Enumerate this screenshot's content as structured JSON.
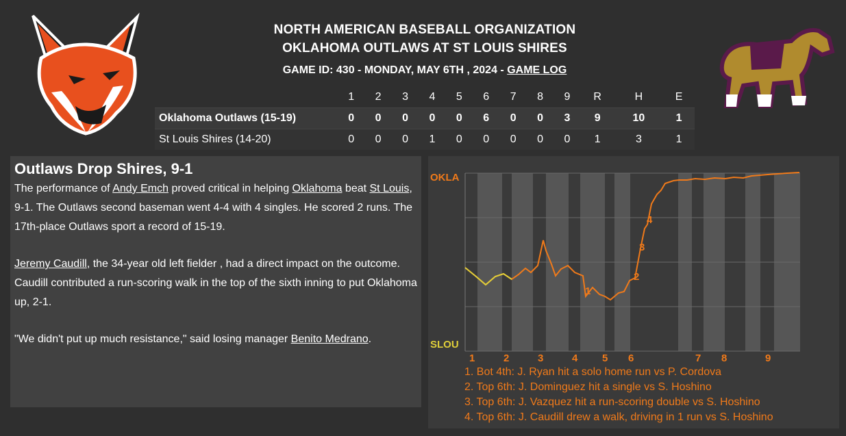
{
  "header": {
    "league": "NORTH AMERICAN BASEBALL ORGANIZATION",
    "matchup": "OKLAHOMA OUTLAWS AT ST LOUIS SHIRES",
    "game_info": "GAME ID: 430 - MONDAY, MAY 6TH , 2024 - ",
    "game_log_link": "GAME LOG"
  },
  "logos": {
    "away": "fox-logo",
    "home": "horse-logo"
  },
  "linescore": {
    "headers": [
      "1",
      "2",
      "3",
      "4",
      "5",
      "6",
      "7",
      "8",
      "9",
      "R",
      "H",
      "E"
    ],
    "rows": [
      {
        "team": "Oklahoma Outlaws (15-19)",
        "innings": [
          "0",
          "0",
          "0",
          "0",
          "0",
          "6",
          "0",
          "0",
          "3"
        ],
        "r": "9",
        "h": "10",
        "e": "1"
      },
      {
        "team": "St Louis Shires (14-20)",
        "innings": [
          "0",
          "0",
          "0",
          "1",
          "0",
          "0",
          "0",
          "0",
          "0"
        ],
        "r": "1",
        "h": "3",
        "e": "1"
      }
    ]
  },
  "story": {
    "headline": "Outlaws Drop Shires, 9-1",
    "p1": {
      "t1": "The performance of ",
      "l1": "Andy Emch",
      "t2": " proved critical in helping ",
      "l2": "Oklahoma",
      "t3": " beat ",
      "l3": "St Louis",
      "t4": ", 9-1. The Outlaws second baseman went 4-4 with 4 singles. He scored 2 runs. The 17th-place Outlaws sport a record of 15-19."
    },
    "p2": {
      "l1": "Jeremy Caudill",
      "t1": ", the 34-year old left fielder , had a direct impact on the outcome. Caudill contributed a run-scoring walk in the top of the sixth inning to put Oklahoma up, 2-1."
    },
    "p3": {
      "t1": "\"We didn't put up much resistance,\" said losing manager ",
      "l1": "Benito Medrano",
      "t2": "."
    }
  },
  "win_prob": {
    "top_label": "OKLA",
    "bottom_label": "SLOU",
    "inning_labels": [
      "1",
      "2",
      "3",
      "4",
      "5",
      "6",
      "7",
      "8",
      "9"
    ],
    "colors": {
      "okla": "#f07a1a",
      "slou": "#e0cf3a"
    },
    "markers": [
      "1",
      "2",
      "3",
      "4"
    ],
    "events": [
      "1. Bot 4th: J. Ryan hit a solo home run vs P. Cordova",
      "2. Top 6th: J. Dominguez hit a single vs S. Hoshino",
      "3. Top 6th: J. Vazquez hit a run-scoring double vs S. Hoshino",
      "4. Top 6th: J. Caudill drew a walk, driving in 1 run vs S. Hoshino"
    ]
  }
}
